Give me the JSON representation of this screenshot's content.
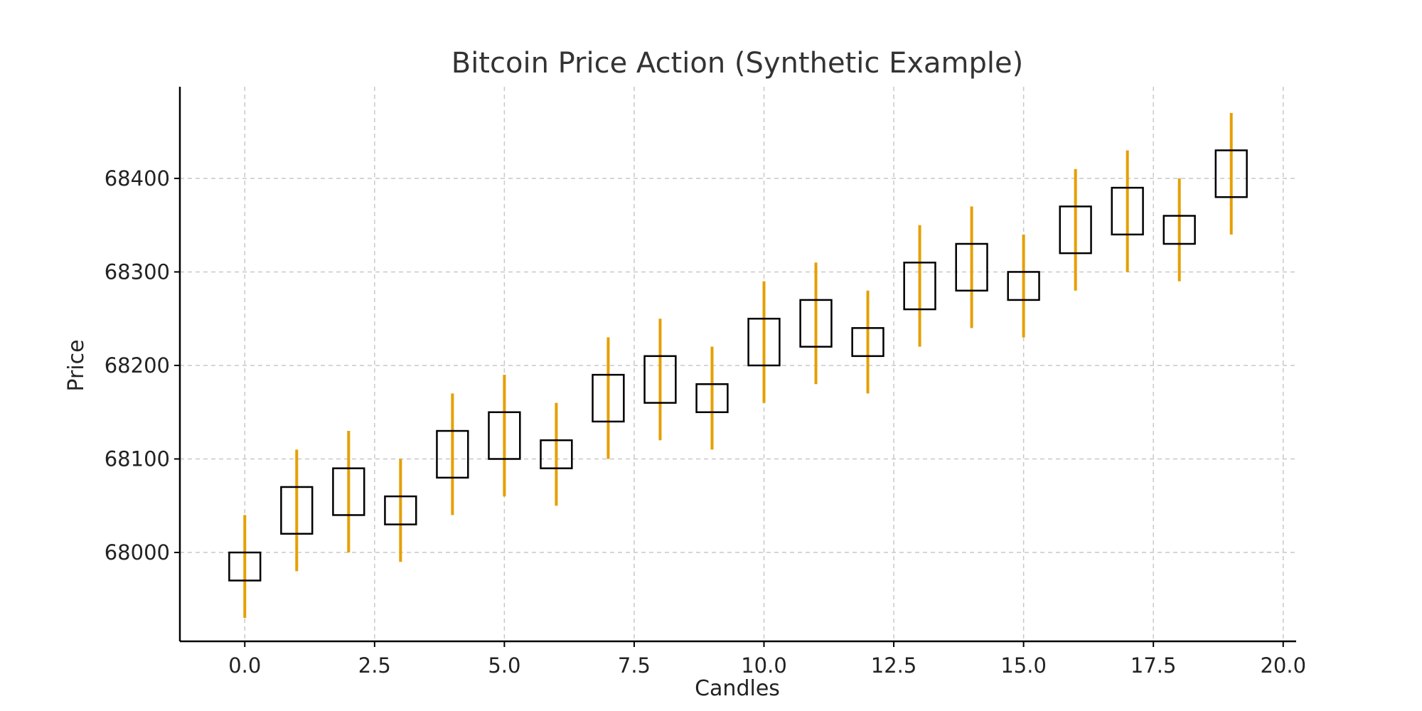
{
  "chart_data": {
    "type": "candlestick",
    "title": "Bitcoin Price Action (Synthetic Example)",
    "xlabel": "Candles",
    "ylabel": "Price",
    "xlim": [
      -1.25,
      20.25
    ],
    "ylim": [
      67905,
      68498
    ],
    "x_ticks": [
      0.0,
      2.5,
      5.0,
      7.5,
      10.0,
      12.5,
      15.0,
      17.5,
      20.0
    ],
    "x_tick_labels": [
      "0.0",
      "2.5",
      "5.0",
      "7.5",
      "10.0",
      "12.5",
      "15.0",
      "17.5",
      "20.0"
    ],
    "y_ticks": [
      68000,
      68100,
      68200,
      68300,
      68400
    ],
    "y_tick_labels": [
      "68000",
      "68100",
      "68200",
      "68300",
      "68400"
    ],
    "grid": true,
    "colors": {
      "wick": "#e69f00",
      "body": "#000000",
      "grid": "#c8c8c8"
    },
    "candles": [
      {
        "x": 0,
        "low": 67930,
        "high": 68040,
        "body_low": 67970,
        "body_high": 68000
      },
      {
        "x": 1,
        "low": 67980,
        "high": 68110,
        "body_low": 68020,
        "body_high": 68070
      },
      {
        "x": 2,
        "low": 68000,
        "high": 68130,
        "body_low": 68040,
        "body_high": 68090
      },
      {
        "x": 3,
        "low": 67990,
        "high": 68100,
        "body_low": 68030,
        "body_high": 68060
      },
      {
        "x": 4,
        "low": 68040,
        "high": 68170,
        "body_low": 68080,
        "body_high": 68130
      },
      {
        "x": 5,
        "low": 68060,
        "high": 68190,
        "body_low": 68100,
        "body_high": 68150
      },
      {
        "x": 6,
        "low": 68050,
        "high": 68160,
        "body_low": 68090,
        "body_high": 68120
      },
      {
        "x": 7,
        "low": 68100,
        "high": 68230,
        "body_low": 68140,
        "body_high": 68190
      },
      {
        "x": 8,
        "low": 68120,
        "high": 68250,
        "body_low": 68160,
        "body_high": 68210
      },
      {
        "x": 9,
        "low": 68110,
        "high": 68220,
        "body_low": 68150,
        "body_high": 68180
      },
      {
        "x": 10,
        "low": 68160,
        "high": 68290,
        "body_low": 68200,
        "body_high": 68250
      },
      {
        "x": 11,
        "low": 68180,
        "high": 68310,
        "body_low": 68220,
        "body_high": 68270
      },
      {
        "x": 12,
        "low": 68170,
        "high": 68280,
        "body_low": 68210,
        "body_high": 68240
      },
      {
        "x": 13,
        "low": 68220,
        "high": 68350,
        "body_low": 68260,
        "body_high": 68310
      },
      {
        "x": 14,
        "low": 68240,
        "high": 68370,
        "body_low": 68280,
        "body_high": 68330
      },
      {
        "x": 15,
        "low": 68230,
        "high": 68340,
        "body_low": 68270,
        "body_high": 68300
      },
      {
        "x": 16,
        "low": 68280,
        "high": 68410,
        "body_low": 68320,
        "body_high": 68370
      },
      {
        "x": 17,
        "low": 68300,
        "high": 68430,
        "body_low": 68340,
        "body_high": 68390
      },
      {
        "x": 18,
        "low": 68290,
        "high": 68400,
        "body_low": 68330,
        "body_high": 68360
      },
      {
        "x": 19,
        "low": 68340,
        "high": 68470,
        "body_low": 68380,
        "body_high": 68430
      }
    ]
  }
}
